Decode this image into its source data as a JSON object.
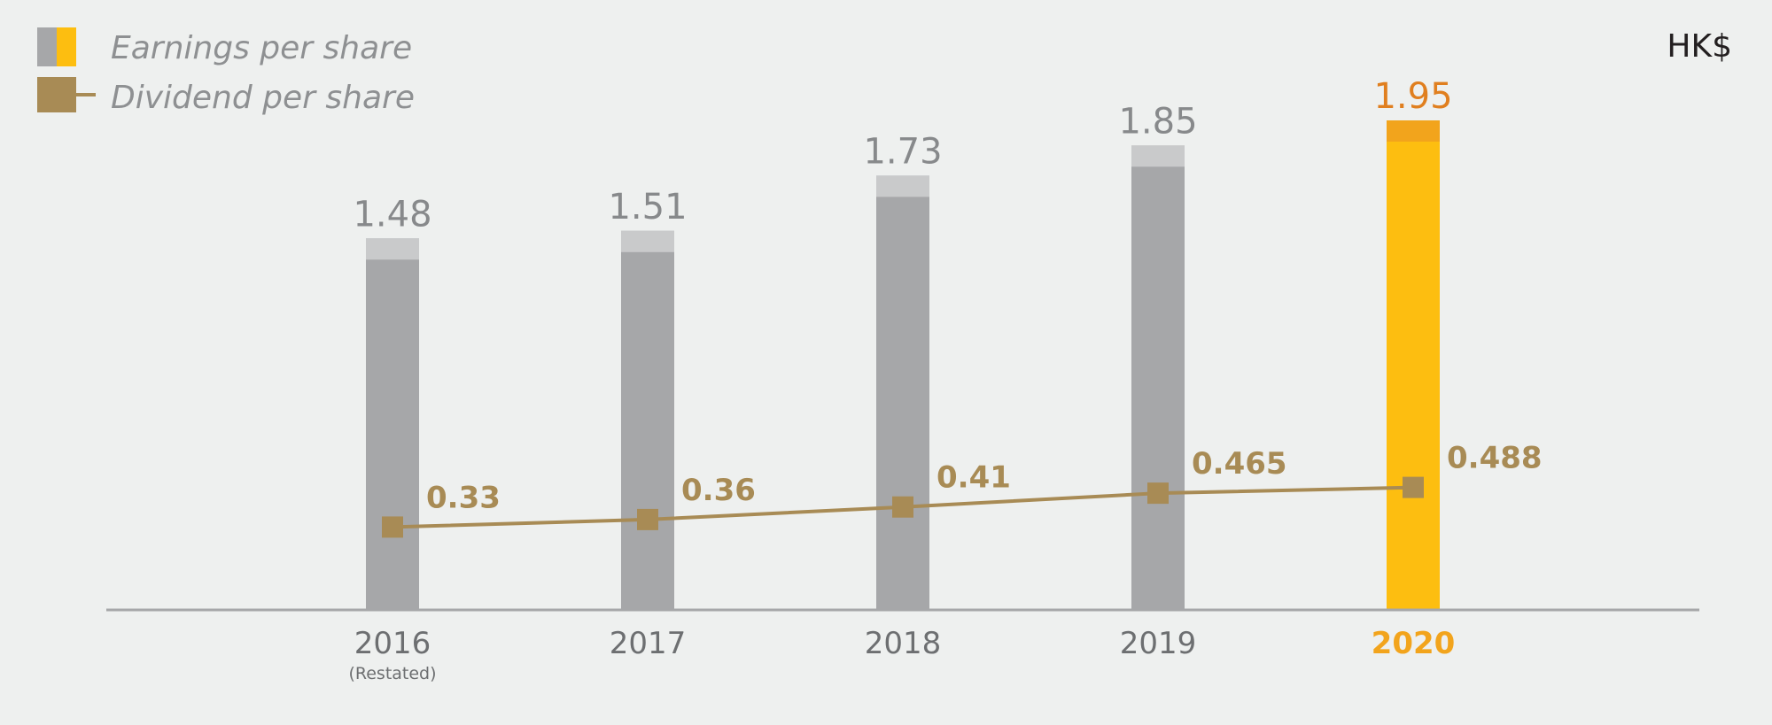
{
  "unit": "HK$",
  "legend": [
    {
      "name": "Earnings per share",
      "icon": "bar-swatch-icon",
      "colors": [
        "#a6a7a9",
        "#fdbe10"
      ]
    },
    {
      "name": "Dividend per share",
      "icon": "line-marker-icon",
      "color": "#a88b55"
    }
  ],
  "colors": {
    "background": "#eef0ef",
    "eps_bar": "#a6a7a9",
    "eps_bar_top": "#c9cacb",
    "eps_bar_highlight": "#fdbe10",
    "eps_bar_highlight_top": "#f2a41c",
    "eps_label": "#87898b",
    "eps_label_highlight": "#e07f1f",
    "dps": "#a88b55",
    "axis": "#a6a7a9",
    "year_highlight": "#f2a41c"
  },
  "chart_data": {
    "type": "bar",
    "categories": [
      "2016",
      "2017",
      "2018",
      "2019",
      "2020"
    ],
    "category_notes": [
      "(Restated)",
      "",
      "",
      "",
      ""
    ],
    "highlight_index": 4,
    "series": [
      {
        "name": "Earnings per share",
        "type": "bar",
        "values": [
          1.48,
          1.51,
          1.73,
          1.85,
          1.95
        ],
        "labels": [
          "1.48",
          "1.51",
          "1.73",
          "1.85",
          "1.95"
        ]
      },
      {
        "name": "Dividend per share",
        "type": "line",
        "values": [
          0.33,
          0.36,
          0.41,
          0.465,
          0.488
        ],
        "labels": [
          "0.33",
          "0.36",
          "0.41",
          "0.465",
          "0.488"
        ]
      }
    ],
    "ylim": [
      0,
      1.95
    ],
    "grid": false,
    "legend_position": "top-left"
  }
}
